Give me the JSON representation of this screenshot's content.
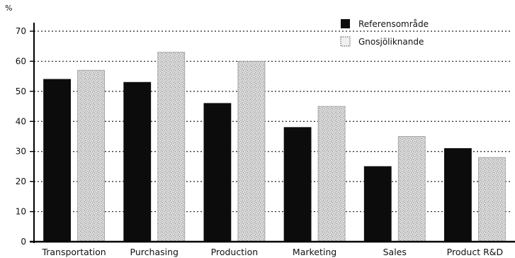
{
  "chart_data": {
    "type": "bar",
    "ylabel": "%",
    "ylim": [
      0,
      70
    ],
    "yticks": [
      0,
      10,
      20,
      30,
      40,
      50,
      60,
      70
    ],
    "grid": true,
    "legend_position": "top-right",
    "categories": [
      "Transportation",
      "Purchasing",
      "Production",
      "Marketing",
      "Sales",
      "Product R&D"
    ],
    "series": [
      {
        "name": "Referensområde",
        "values": [
          54,
          53,
          46,
          38,
          25,
          31
        ]
      },
      {
        "name": "Gnosjöliknande",
        "values": [
          57,
          63,
          60,
          45,
          35,
          28
        ]
      }
    ],
    "colors": {
      "series_1": "#0c0c0c",
      "series_2": "#cfcfcf",
      "grid": "#222222"
    }
  }
}
